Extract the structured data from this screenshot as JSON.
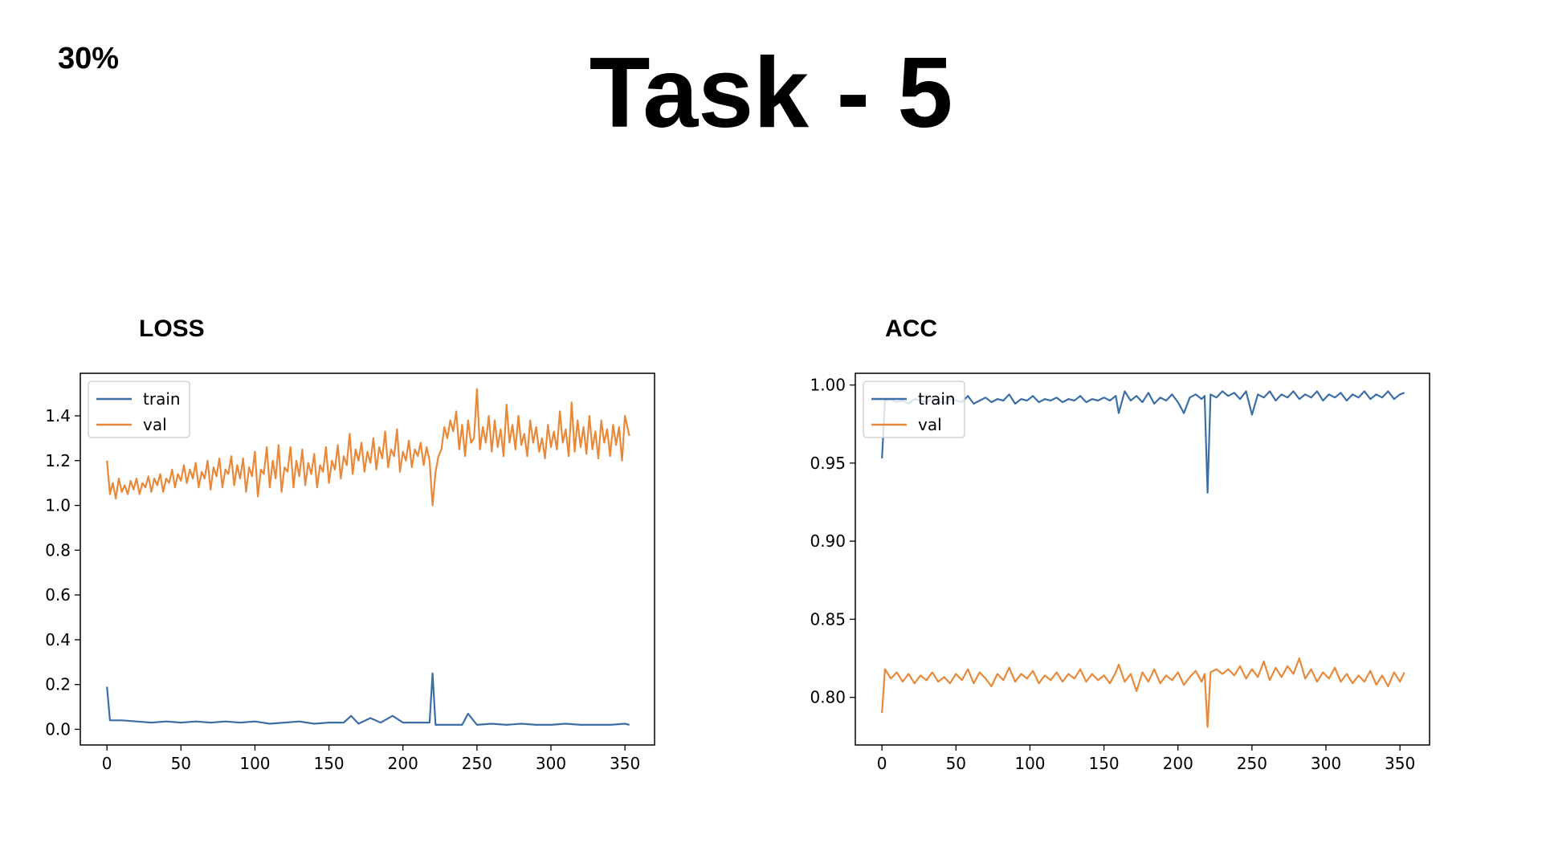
{
  "slide": {
    "percent_label": "30%",
    "title": "Task - 5"
  },
  "chart_data": [
    {
      "id": "loss",
      "type": "line",
      "title": "LOSS",
      "xlabel": "",
      "ylabel": "",
      "xlim": [
        -18,
        370
      ],
      "ylim": [
        -0.07,
        1.59
      ],
      "xticks": [
        0,
        50,
        100,
        150,
        200,
        250,
        300,
        350
      ],
      "xtick_labels": [
        "0",
        "50",
        "100",
        "150",
        "200",
        "250",
        "300",
        "350"
      ],
      "yticks": [
        0.0,
        0.2,
        0.4,
        0.6,
        0.8,
        1.0,
        1.2,
        1.4
      ],
      "ytick_labels": [
        "0.0",
        "0.2",
        "0.4",
        "0.6",
        "0.8",
        "1.0",
        "1.2",
        "1.4"
      ],
      "legend": {
        "position": "top-left",
        "entries": [
          "train",
          "val"
        ]
      },
      "series": [
        {
          "name": "train",
          "color": "#3c6ea6",
          "x": [
            0,
            2,
            10,
            20,
            30,
            40,
            50,
            60,
            70,
            80,
            90,
            100,
            110,
            120,
            130,
            140,
            150,
            160,
            165,
            170,
            178,
            185,
            193,
            200,
            210,
            218,
            220,
            222,
            230,
            240,
            244,
            250,
            260,
            270,
            280,
            290,
            300,
            310,
            320,
            330,
            340,
            350,
            353
          ],
          "y": [
            0.19,
            0.04,
            0.04,
            0.035,
            0.03,
            0.035,
            0.03,
            0.035,
            0.03,
            0.035,
            0.03,
            0.035,
            0.025,
            0.03,
            0.035,
            0.025,
            0.03,
            0.03,
            0.06,
            0.025,
            0.05,
            0.03,
            0.06,
            0.03,
            0.03,
            0.03,
            0.25,
            0.02,
            0.02,
            0.02,
            0.07,
            0.02,
            0.025,
            0.02,
            0.025,
            0.02,
            0.02,
            0.025,
            0.02,
            0.02,
            0.02,
            0.025,
            0.02
          ]
        },
        {
          "name": "val",
          "color": "#e8893a",
          "x": [
            0,
            2,
            4,
            6,
            8,
            10,
            12,
            14,
            16,
            18,
            20,
            22,
            24,
            26,
            28,
            30,
            32,
            34,
            36,
            38,
            40,
            42,
            44,
            46,
            48,
            50,
            52,
            54,
            56,
            58,
            60,
            62,
            64,
            66,
            68,
            70,
            72,
            74,
            76,
            78,
            80,
            82,
            84,
            86,
            88,
            90,
            92,
            94,
            96,
            98,
            100,
            102,
            104,
            106,
            108,
            110,
            112,
            114,
            116,
            118,
            120,
            122,
            124,
            126,
            128,
            130,
            132,
            134,
            136,
            138,
            140,
            142,
            144,
            146,
            148,
            150,
            152,
            154,
            156,
            158,
            160,
            162,
            164,
            166,
            168,
            170,
            172,
            174,
            176,
            178,
            180,
            182,
            184,
            186,
            188,
            190,
            192,
            194,
            196,
            198,
            200,
            202,
            204,
            206,
            208,
            210,
            212,
            214,
            216,
            218,
            220,
            222,
            224,
            226,
            228,
            230,
            232,
            234,
            236,
            238,
            240,
            242,
            244,
            246,
            248,
            250,
            252,
            254,
            256,
            258,
            260,
            262,
            264,
            266,
            268,
            270,
            272,
            274,
            276,
            278,
            280,
            282,
            284,
            286,
            288,
            290,
            292,
            294,
            296,
            298,
            300,
            302,
            304,
            306,
            308,
            310,
            312,
            314,
            316,
            318,
            320,
            322,
            324,
            326,
            328,
            330,
            332,
            334,
            336,
            338,
            340,
            342,
            344,
            346,
            348,
            350,
            352,
            353
          ],
          "y": [
            1.2,
            1.05,
            1.1,
            1.03,
            1.12,
            1.06,
            1.09,
            1.05,
            1.11,
            1.07,
            1.12,
            1.05,
            1.1,
            1.08,
            1.13,
            1.06,
            1.12,
            1.09,
            1.14,
            1.06,
            1.12,
            1.1,
            1.16,
            1.08,
            1.14,
            1.11,
            1.18,
            1.1,
            1.16,
            1.12,
            1.19,
            1.08,
            1.15,
            1.12,
            1.2,
            1.07,
            1.17,
            1.13,
            1.21,
            1.08,
            1.16,
            1.14,
            1.22,
            1.09,
            1.18,
            1.12,
            1.21,
            1.06,
            1.17,
            1.13,
            1.24,
            1.04,
            1.16,
            1.14,
            1.26,
            1.08,
            1.2,
            1.12,
            1.27,
            1.06,
            1.17,
            1.15,
            1.26,
            1.08,
            1.2,
            1.13,
            1.25,
            1.09,
            1.19,
            1.14,
            1.23,
            1.08,
            1.18,
            1.15,
            1.26,
            1.1,
            1.2,
            1.16,
            1.27,
            1.12,
            1.22,
            1.18,
            1.32,
            1.14,
            1.25,
            1.2,
            1.28,
            1.15,
            1.24,
            1.19,
            1.3,
            1.16,
            1.26,
            1.21,
            1.33,
            1.17,
            1.25,
            1.22,
            1.34,
            1.15,
            1.24,
            1.2,
            1.29,
            1.17,
            1.25,
            1.22,
            1.28,
            1.18,
            1.26,
            1.2,
            1.0,
            1.15,
            1.22,
            1.25,
            1.35,
            1.3,
            1.38,
            1.33,
            1.42,
            1.25,
            1.36,
            1.22,
            1.38,
            1.28,
            1.3,
            1.52,
            1.25,
            1.35,
            1.28,
            1.4,
            1.24,
            1.38,
            1.26,
            1.34,
            1.22,
            1.45,
            1.28,
            1.36,
            1.25,
            1.4,
            1.27,
            1.32,
            1.22,
            1.38,
            1.28,
            1.35,
            1.24,
            1.3,
            1.21,
            1.36,
            1.26,
            1.33,
            1.25,
            1.42,
            1.28,
            1.34,
            1.22,
            1.46,
            1.24,
            1.38,
            1.26,
            1.35,
            1.23,
            1.4,
            1.25,
            1.33,
            1.21,
            1.38,
            1.28,
            1.34,
            1.22,
            1.36,
            1.27,
            1.35,
            1.2,
            1.4,
            1.34,
            1.31
          ]
        }
      ]
    },
    {
      "id": "acc",
      "type": "line",
      "title": "ACC",
      "xlabel": "",
      "ylabel": "",
      "xlim": [
        -18,
        370
      ],
      "ylim": [
        0.7695,
        1.0075
      ],
      "xticks": [
        0,
        50,
        100,
        150,
        200,
        250,
        300,
        350
      ],
      "xtick_labels": [
        "0",
        "50",
        "100",
        "150",
        "200",
        "250",
        "300",
        "350"
      ],
      "yticks": [
        0.8,
        0.85,
        0.9,
        0.95,
        1.0
      ],
      "ytick_labels": [
        "0.80",
        "0.85",
        "0.90",
        "0.95",
        "1.00"
      ],
      "legend": {
        "position": "top-left",
        "entries": [
          "train",
          "val"
        ]
      },
      "series": [
        {
          "name": "train",
          "color": "#3c6ea6",
          "x": [
            0,
            2,
            6,
            10,
            14,
            18,
            22,
            26,
            30,
            34,
            38,
            42,
            46,
            50,
            54,
            58,
            62,
            66,
            70,
            74,
            78,
            82,
            86,
            90,
            94,
            98,
            102,
            106,
            110,
            114,
            118,
            122,
            126,
            130,
            134,
            138,
            142,
            146,
            150,
            154,
            158,
            160,
            164,
            168,
            172,
            176,
            180,
            184,
            188,
            192,
            196,
            200,
            204,
            208,
            212,
            216,
            218,
            220,
            222,
            226,
            230,
            234,
            238,
            242,
            246,
            250,
            254,
            258,
            262,
            266,
            270,
            274,
            278,
            282,
            286,
            290,
            294,
            298,
            302,
            306,
            310,
            314,
            318,
            322,
            326,
            330,
            334,
            338,
            342,
            346,
            350,
            353
          ],
          "y": [
            0.953,
            0.99,
            0.991,
            0.989,
            0.99,
            0.988,
            0.991,
            0.99,
            0.989,
            0.992,
            0.99,
            0.988,
            0.991,
            0.99,
            0.989,
            0.993,
            0.988,
            0.99,
            0.992,
            0.989,
            0.991,
            0.99,
            0.994,
            0.988,
            0.991,
            0.99,
            0.993,
            0.989,
            0.991,
            0.99,
            0.992,
            0.989,
            0.991,
            0.99,
            0.993,
            0.989,
            0.991,
            0.99,
            0.992,
            0.99,
            0.993,
            0.982,
            0.996,
            0.99,
            0.993,
            0.989,
            0.995,
            0.988,
            0.992,
            0.99,
            0.994,
            0.989,
            0.982,
            0.992,
            0.994,
            0.991,
            0.993,
            0.931,
            0.994,
            0.992,
            0.996,
            0.993,
            0.995,
            0.991,
            0.996,
            0.981,
            0.994,
            0.992,
            0.996,
            0.99,
            0.994,
            0.992,
            0.996,
            0.991,
            0.994,
            0.992,
            0.996,
            0.99,
            0.994,
            0.992,
            0.995,
            0.99,
            0.994,
            0.992,
            0.996,
            0.991,
            0.994,
            0.992,
            0.996,
            0.991,
            0.994,
            0.995
          ]
        },
        {
          "name": "val",
          "color": "#e8893a",
          "x": [
            0,
            2,
            6,
            10,
            14,
            18,
            22,
            26,
            30,
            34,
            38,
            42,
            46,
            50,
            54,
            58,
            62,
            66,
            70,
            74,
            78,
            82,
            86,
            90,
            94,
            98,
            102,
            106,
            110,
            114,
            118,
            122,
            126,
            130,
            134,
            138,
            142,
            146,
            150,
            154,
            158,
            160,
            164,
            168,
            172,
            176,
            180,
            184,
            188,
            192,
            196,
            200,
            204,
            208,
            212,
            216,
            218,
            220,
            222,
            226,
            230,
            234,
            238,
            242,
            246,
            250,
            254,
            258,
            262,
            266,
            270,
            274,
            278,
            282,
            286,
            290,
            294,
            298,
            302,
            306,
            310,
            314,
            318,
            322,
            326,
            330,
            334,
            338,
            342,
            346,
            350,
            353
          ],
          "y": [
            0.79,
            0.818,
            0.812,
            0.816,
            0.81,
            0.815,
            0.809,
            0.814,
            0.811,
            0.816,
            0.81,
            0.813,
            0.809,
            0.815,
            0.811,
            0.818,
            0.809,
            0.816,
            0.812,
            0.807,
            0.815,
            0.811,
            0.819,
            0.81,
            0.815,
            0.812,
            0.817,
            0.809,
            0.814,
            0.811,
            0.816,
            0.81,
            0.815,
            0.812,
            0.818,
            0.81,
            0.815,
            0.811,
            0.814,
            0.809,
            0.816,
            0.821,
            0.81,
            0.815,
            0.804,
            0.816,
            0.81,
            0.818,
            0.809,
            0.814,
            0.811,
            0.816,
            0.808,
            0.813,
            0.817,
            0.81,
            0.815,
            0.781,
            0.816,
            0.818,
            0.815,
            0.818,
            0.814,
            0.82,
            0.812,
            0.818,
            0.813,
            0.823,
            0.811,
            0.819,
            0.813,
            0.82,
            0.815,
            0.825,
            0.812,
            0.818,
            0.81,
            0.816,
            0.812,
            0.819,
            0.81,
            0.815,
            0.809,
            0.814,
            0.81,
            0.817,
            0.808,
            0.814,
            0.807,
            0.816,
            0.81,
            0.816
          ]
        }
      ]
    }
  ]
}
